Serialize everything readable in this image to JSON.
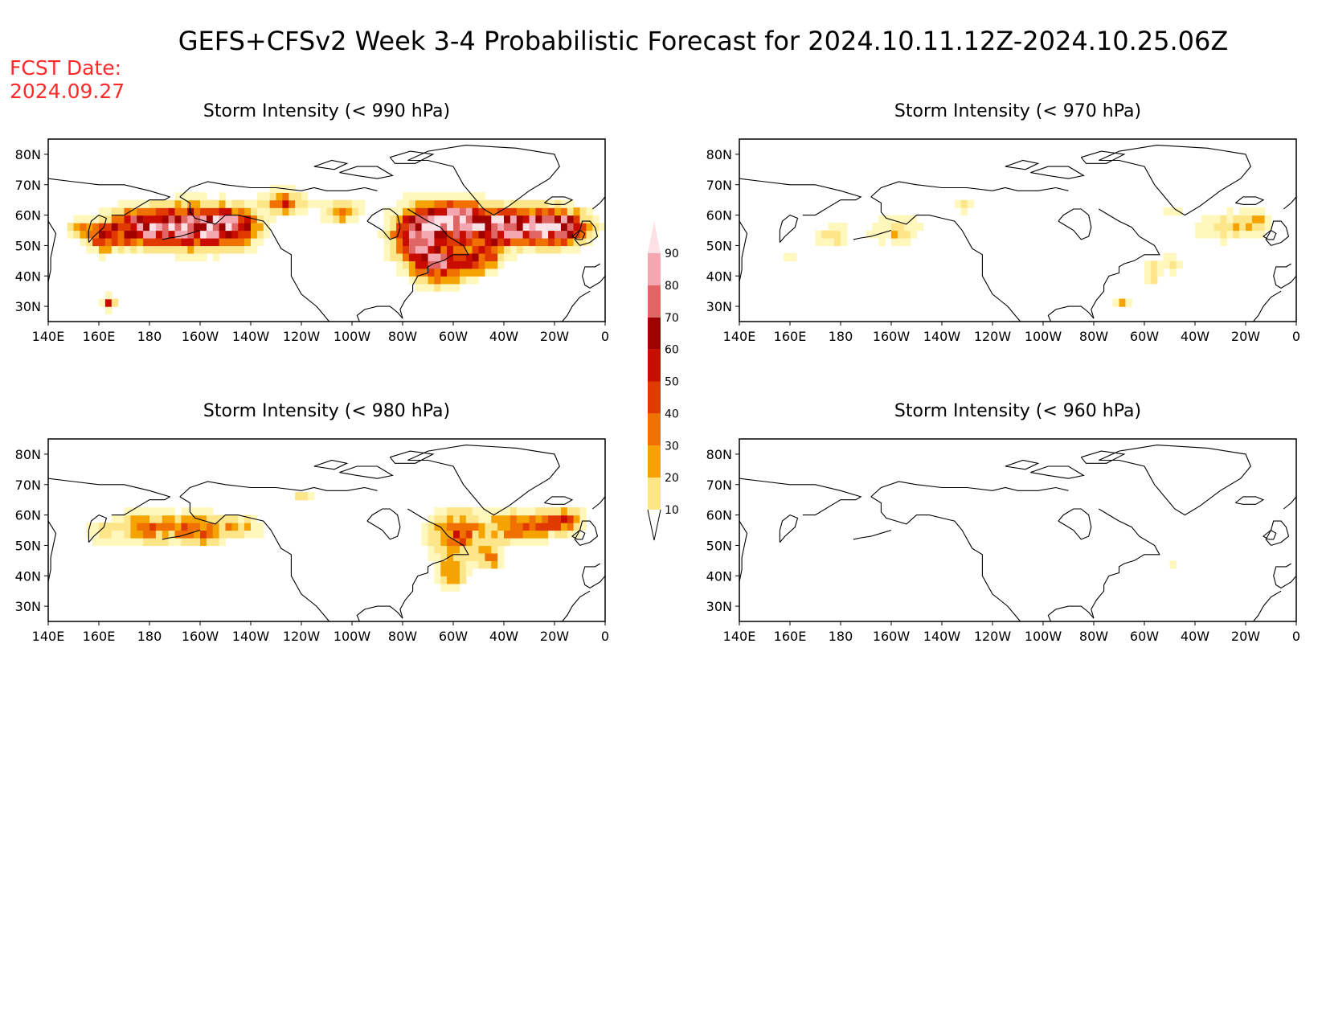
{
  "title": "GEFS+CFSv2 Week 3-4 Probabilistic Forecast for 2024.10.11.12Z-2024.10.25.06Z",
  "fcst_label": "FCST Date:",
  "fcst_date": "2024.09.27",
  "colors": {
    "text": "#000000",
    "fcst": "#ff2a2a",
    "levels": [
      "#fff7bc",
      "#fde68a",
      "#f5a300",
      "#f07000",
      "#e03a00",
      "#c80d00",
      "#a00000",
      "#e06666",
      "#f4a7b0",
      "#fde1e6"
    ]
  },
  "x_ticks": [
    "140E",
    "160E",
    "180",
    "160W",
    "140W",
    "120W",
    "100W",
    "80W",
    "60W",
    "40W",
    "20W",
    "0"
  ],
  "y_ticks": [
    "80N",
    "70N",
    "60N",
    "50N",
    "40N",
    "30N"
  ],
  "colorbar": {
    "labels": [
      "10",
      "20",
      "30",
      "40",
      "50",
      "60",
      "70",
      "80",
      "90"
    ]
  },
  "panels": [
    {
      "id": "p990",
      "title": "Storm Intensity (< 990 hPa)",
      "intensity": 1.0
    },
    {
      "id": "p970",
      "title": "Storm Intensity (< 970 hPa)",
      "intensity": 0.28
    },
    {
      "id": "p980",
      "title": "Storm Intensity (< 980 hPa)",
      "intensity": 0.55
    },
    {
      "id": "p960",
      "title": "Storm Intensity (< 960 hPa)",
      "intensity": 0.12
    }
  ]
}
